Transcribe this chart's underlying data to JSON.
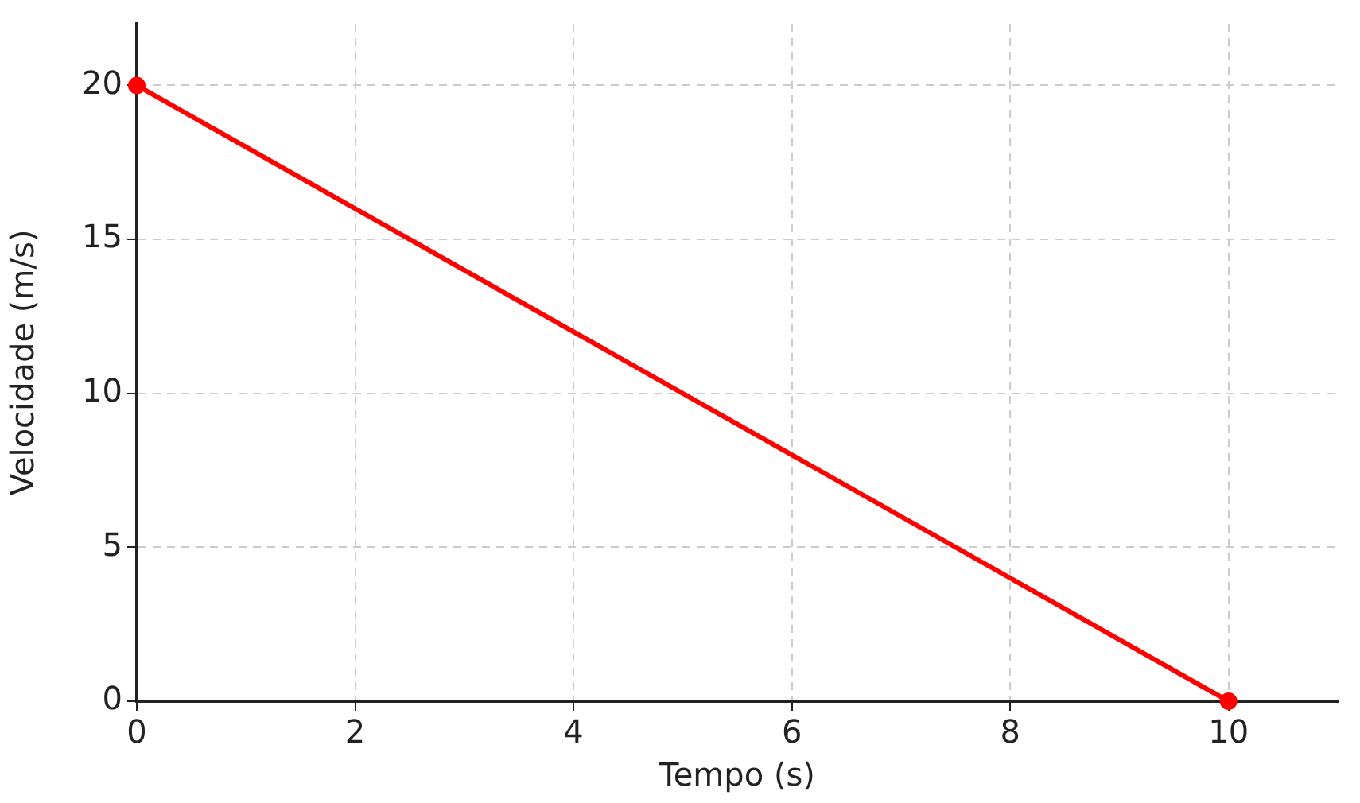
{
  "chart_data": {
    "type": "line",
    "xlabel": "Tempo (s)",
    "ylabel": "Velocidade (m/s)",
    "x": [
      0,
      10
    ],
    "series": [
      {
        "color": "#ff0000",
        "values": [
          20,
          0
        ]
      }
    ],
    "xlim": [
      0,
      11
    ],
    "xticks": [
      0,
      2,
      4,
      6,
      8,
      10
    ],
    "ylim": [
      0,
      22
    ],
    "yticks": [
      0,
      5,
      10,
      15,
      20
    ],
    "grid": true,
    "legend": false,
    "marker": "circle",
    "line_style": "solid"
  }
}
